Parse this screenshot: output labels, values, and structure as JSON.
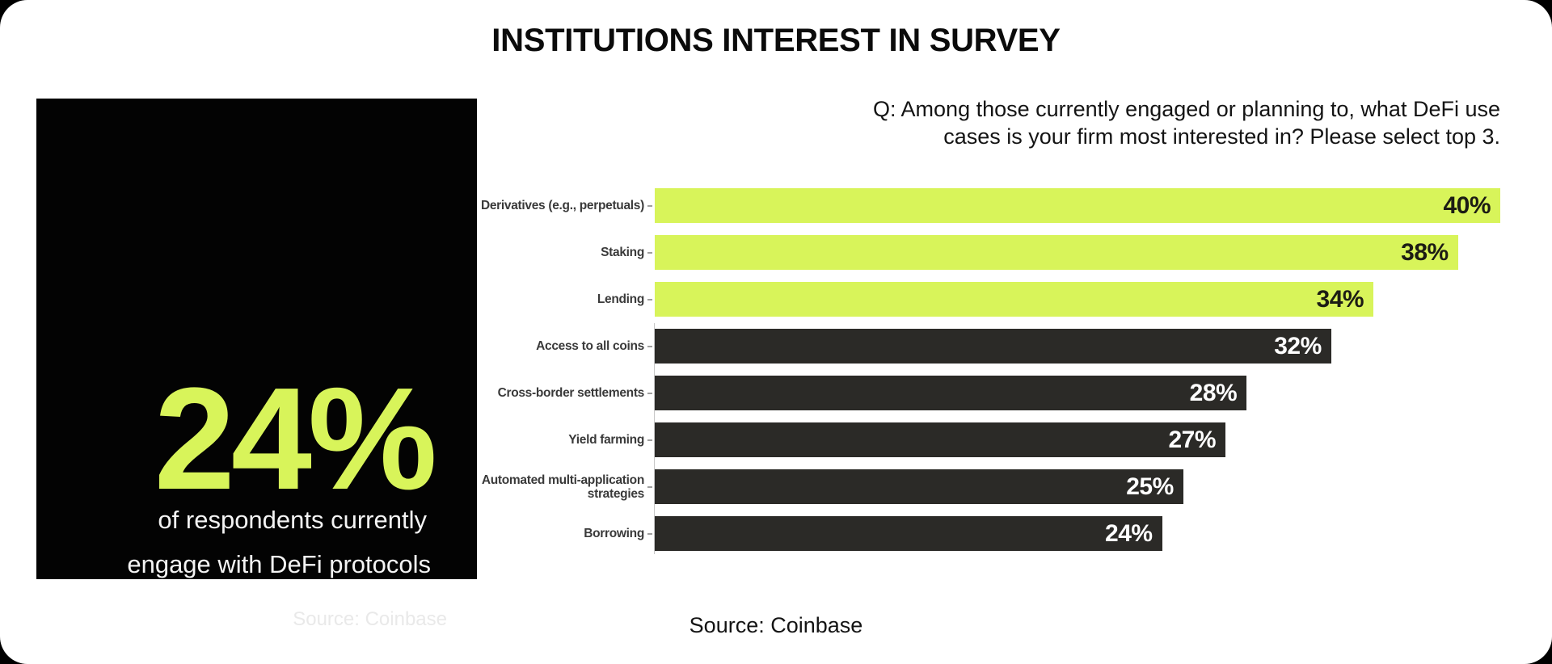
{
  "page": {
    "title": "INSTITUTIONS INTEREST IN SURVEY",
    "background_color": "#000000",
    "card_color": "#ffffff"
  },
  "stat_box": {
    "value": "24%",
    "line1": "of respondents currently",
    "line2": "engage with DeFi protocols",
    "source": "Source: Coinbase",
    "bg_color": "#030303",
    "accent_color": "#d8f45a",
    "text_color": "#f4f4f4"
  },
  "question": {
    "line1": "Q: Among those currently engaged or planning to, what DeFi use",
    "line2": "cases is your firm most interested in? Please select top 3."
  },
  "chart_data": {
    "type": "bar",
    "orientation": "horizontal",
    "title": "",
    "xlabel": "",
    "ylabel": "",
    "xlim": [
      0,
      40
    ],
    "grid": false,
    "legend": false,
    "categories": [
      "Derivatives (e.g., perpetuals)",
      "Staking",
      "Lending",
      "Access to all coins",
      "Cross-border settlements",
      "Yield farming",
      "Automated multi-application strategies",
      "Borrowing"
    ],
    "values": [
      40,
      38,
      34,
      32,
      28,
      27,
      25,
      24
    ],
    "value_labels": [
      "40%",
      "38%",
      "34%",
      "32%",
      "28%",
      "27%",
      "25%",
      "24%"
    ],
    "highlight_count": 3,
    "highlight_color": "#d8f45a",
    "bar_color": "#2b2a27",
    "value_color_on_highlight": "#1c1c14",
    "value_color_on_dark": "#ffffff",
    "source": "Source: Coinbase"
  }
}
